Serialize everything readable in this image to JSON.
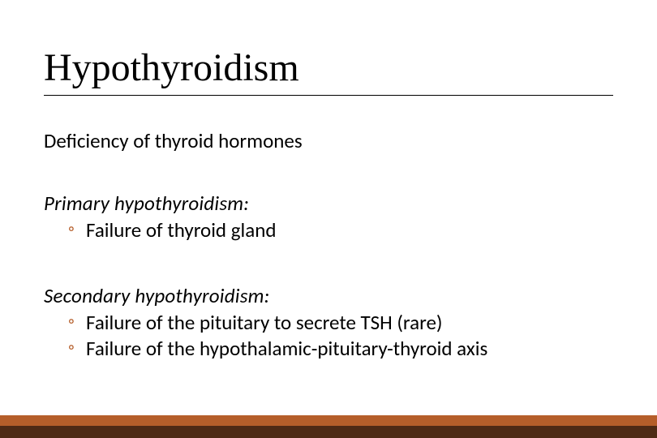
{
  "slide": {
    "title": "Hypothyroidism",
    "intro": "Deficiency of thyroid hormones",
    "sections": [
      {
        "heading": "Primary hypothyroidism:",
        "bullets": [
          "Failure of thyroid gland"
        ]
      },
      {
        "heading": "Secondary hypothyroidism:",
        "bullets": [
          "Failure of the pituitary to secrete TSH (rare)",
          "Failure of the hypothalamic-pituitary-thyroid axis"
        ]
      }
    ],
    "colors": {
      "text": "#000000",
      "bullet": "#b55e2a",
      "footer_top": "#b55e2a",
      "footer_bottom": "#4e2a15",
      "background": "#ffffff"
    },
    "typography": {
      "title_font": "Times New Roman",
      "body_font": "Calibri",
      "title_size_pt": 36,
      "body_size_pt": 19,
      "heading_italic": true
    }
  }
}
